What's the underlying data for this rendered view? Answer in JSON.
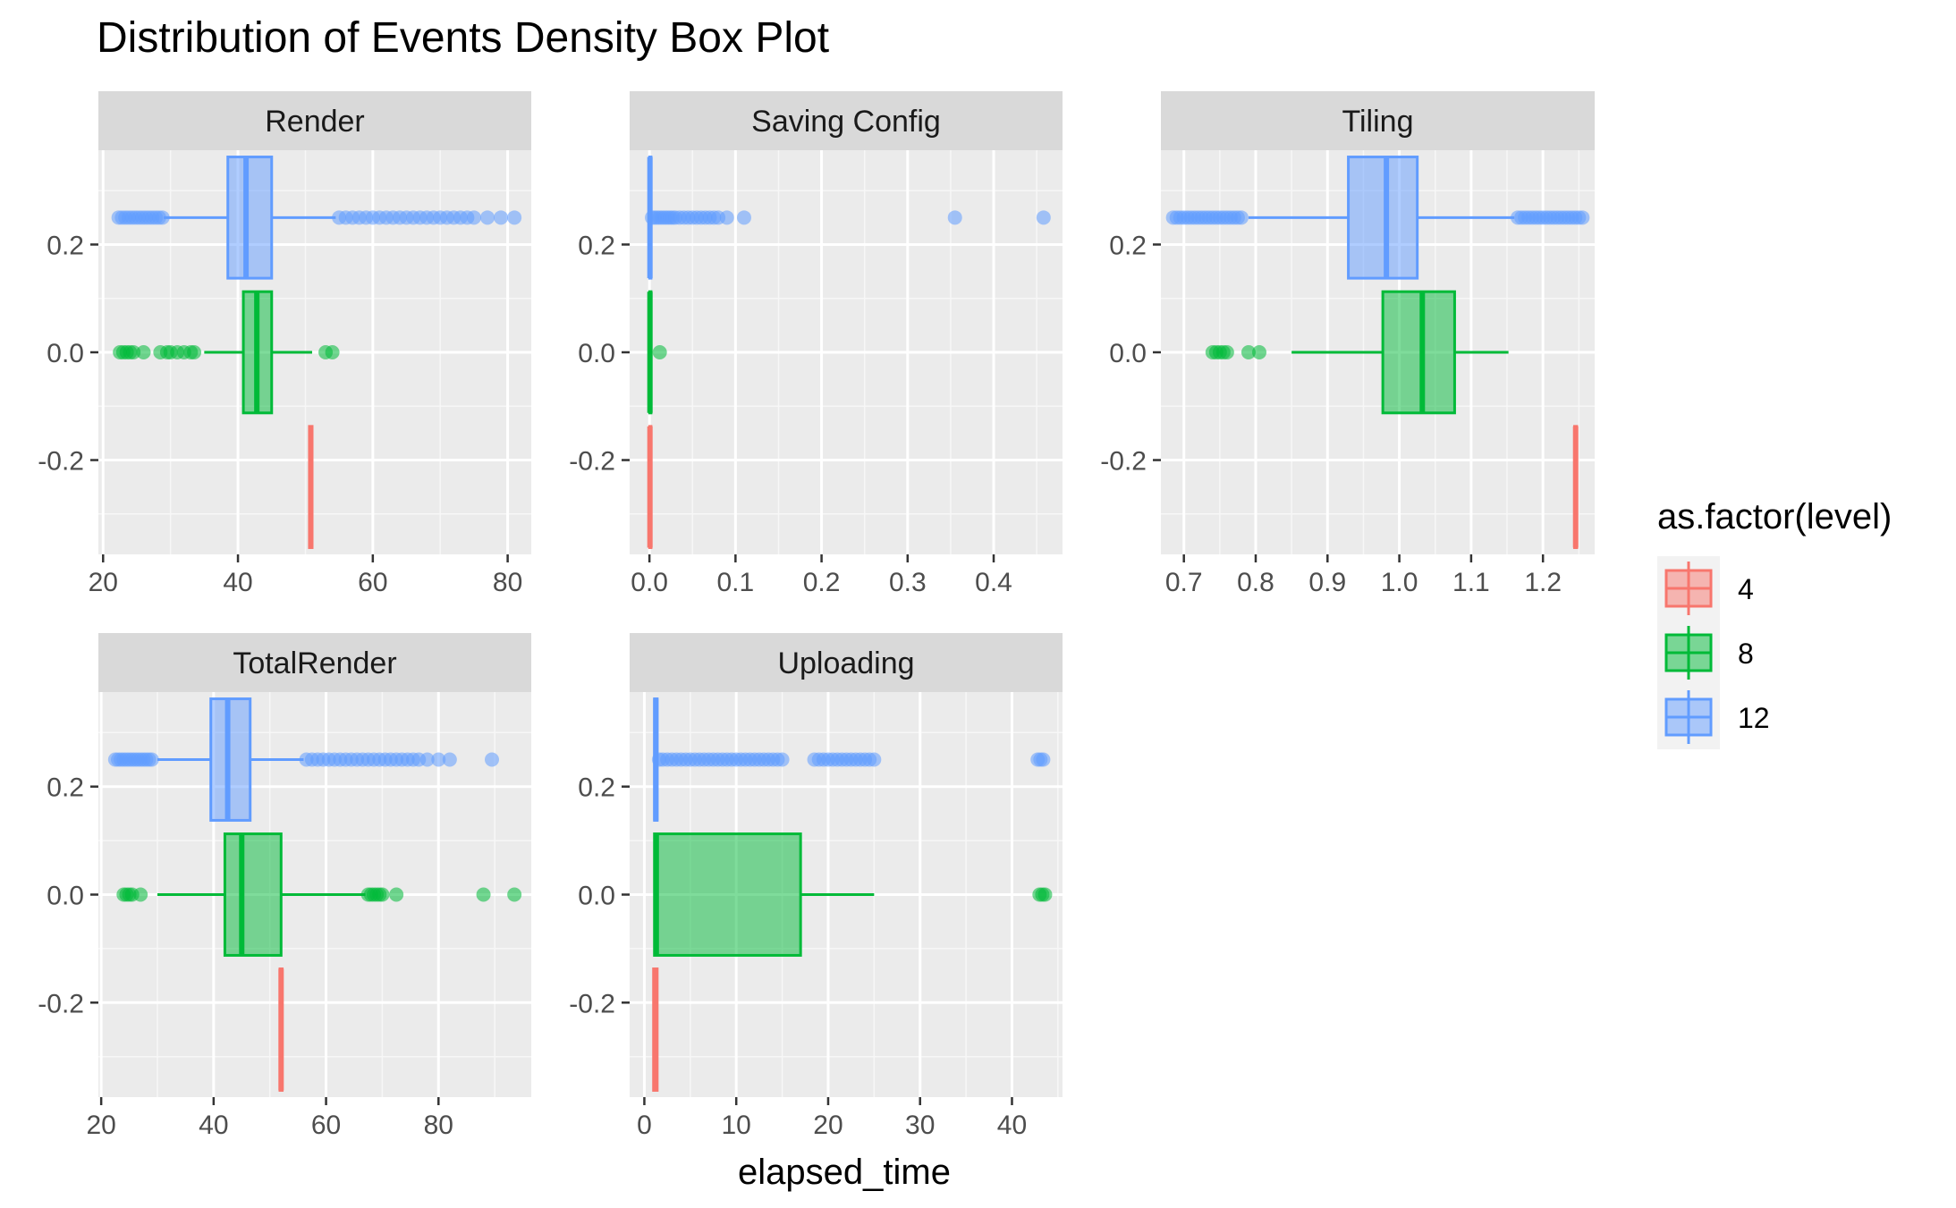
{
  "chart_data": {
    "type": "box",
    "title": "Distribution of Events Density  Box Plot",
    "xlabel": "elapsed_time",
    "ylabel": "",
    "legend": {
      "title": "as.factor(level)",
      "placement": "right",
      "entries": [
        {
          "label": "4",
          "color": "#F8766D"
        },
        {
          "label": "8",
          "color": "#00BA38"
        },
        {
          "label": "12",
          "color": "#619CFF"
        }
      ]
    },
    "grid": true,
    "y_ticks": [
      "0.2",
      "0.0",
      "-0.2"
    ],
    "y_tick_values": [
      0.2,
      0.0,
      -0.2
    ],
    "ylim": [
      -0.375,
      0.375
    ],
    "panels": [
      {
        "facet": "Render",
        "xlim": [
          19.3,
          83.5
        ],
        "x_ticks": [
          20,
          40,
          60,
          80
        ],
        "x_tick_labels": [
          "20",
          "40",
          "60",
          "80"
        ],
        "series": [
          {
            "level": "4",
            "y": -0.25,
            "q1": 50.6,
            "median": 50.8,
            "q3": 51.0,
            "whisker_low": 50.6,
            "whisker_high": 51.0,
            "outliers": []
          },
          {
            "level": "8",
            "y": 0.0,
            "q1": 40.8,
            "median": 42.8,
            "q3": 45.0,
            "whisker_low": 35.0,
            "whisker_high": 51.0,
            "outliers": [
              22.5,
              23.0,
              23.5,
              24.0,
              24.5,
              26.0,
              28.5,
              29.5,
              30.0,
              31.0,
              32.0,
              33.0,
              33.5,
              53.0,
              54.0
            ]
          },
          {
            "level": "12",
            "y": 0.25,
            "q1": 38.5,
            "median": 41.2,
            "q3": 45.0,
            "whisker_low": 29.0,
            "whisker_high": 54.5,
            "outliers": [
              22.3,
              22.8,
              23.3,
              23.8,
              24.3,
              24.8,
              25.3,
              25.8,
              26.3,
              26.8,
              27.3,
              27.8,
              28.3,
              28.8,
              55.0,
              56.0,
              57.0,
              58.0,
              59.0,
              60.0,
              61.0,
              62.0,
              63.0,
              64.0,
              65.0,
              66.0,
              67.0,
              68.0,
              69.0,
              70.0,
              71.0,
              72.0,
              73.0,
              74.0,
              75.0,
              77.0,
              79.0,
              81.0
            ]
          }
        ]
      },
      {
        "facet": "Saving Config",
        "xlim": [
          -0.023,
          0.48
        ],
        "x_ticks": [
          0.0,
          0.1,
          0.2,
          0.3,
          0.4
        ],
        "x_tick_labels": [
          "0.0",
          "0.1",
          "0.2",
          "0.3",
          "0.4"
        ],
        "series": [
          {
            "level": "4",
            "y": -0.25,
            "q1": 0.0003,
            "median": 0.0006,
            "q3": 0.001,
            "whisker_low": 0.0002,
            "whisker_high": 0.0012,
            "outliers": []
          },
          {
            "level": "8",
            "y": 0.0,
            "q1": 0.0003,
            "median": 0.0006,
            "q3": 0.001,
            "whisker_low": 0.0002,
            "whisker_high": 0.0012,
            "outliers": [
              0.012
            ]
          },
          {
            "level": "12",
            "y": 0.25,
            "q1": 0.0003,
            "median": 0.0006,
            "q3": 0.001,
            "whisker_low": 0.0002,
            "whisker_high": 0.0012,
            "outliers": [
              0.003,
              0.006,
              0.009,
              0.012,
              0.015,
              0.018,
              0.021,
              0.024,
              0.027,
              0.03,
              0.035,
              0.04,
              0.045,
              0.05,
              0.055,
              0.06,
              0.065,
              0.07,
              0.075,
              0.08,
              0.09,
              0.11,
              0.355,
              0.458
            ]
          }
        ]
      },
      {
        "facet": "Tiling",
        "xlim": [
          0.668,
          1.272
        ],
        "x_ticks": [
          0.7,
          0.8,
          0.9,
          1.0,
          1.1,
          1.2
        ],
        "x_tick_labels": [
          "0.7",
          "0.8",
          "0.9",
          "1.0",
          "1.1",
          "1.2"
        ],
        "series": [
          {
            "level": "4",
            "y": -0.25,
            "q1": 1.244,
            "median": 1.2455,
            "q3": 1.247,
            "whisker_low": 1.244,
            "whisker_high": 1.247,
            "outliers": []
          },
          {
            "level": "8",
            "y": 0.0,
            "q1": 0.977,
            "median": 1.032,
            "q3": 1.077,
            "whisker_low": 0.85,
            "whisker_high": 1.152,
            "outliers": [
              0.74,
              0.745,
              0.75,
              0.755,
              0.76,
              0.79,
              0.805
            ]
          },
          {
            "level": "12",
            "y": 0.25,
            "q1": 0.929,
            "median": 0.982,
            "q3": 1.025,
            "whisker_low": 0.79,
            "whisker_high": 1.16,
            "outliers": [
              0.685,
              0.69,
              0.695,
              0.7,
              0.705,
              0.71,
              0.715,
              0.72,
              0.725,
              0.73,
              0.735,
              0.74,
              0.745,
              0.75,
              0.755,
              0.76,
              0.765,
              0.77,
              0.775,
              0.78,
              1.165,
              1.17,
              1.175,
              1.18,
              1.185,
              1.19,
              1.195,
              1.2,
              1.205,
              1.21,
              1.215,
              1.22,
              1.225,
              1.23,
              1.235,
              1.24,
              1.245,
              1.25,
              1.255
            ]
          }
        ]
      },
      {
        "facet": "TotalRender",
        "xlim": [
          19.5,
          96.5
        ],
        "x_ticks": [
          20,
          40,
          60,
          80
        ],
        "x_tick_labels": [
          "20",
          "40",
          "60",
          "80"
        ],
        "series": [
          {
            "level": "4",
            "y": -0.25,
            "q1": 51.8,
            "median": 52.0,
            "q3": 52.2,
            "whisker_low": 51.8,
            "whisker_high": 52.2,
            "outliers": []
          },
          {
            "level": "8",
            "y": 0.0,
            "q1": 42.0,
            "median": 45.0,
            "q3": 52.0,
            "whisker_low": 30.0,
            "whisker_high": 67.0,
            "outliers": [
              24.0,
              24.5,
              25.0,
              25.5,
              27.0,
              67.5,
              68.0,
              68.5,
              69.0,
              69.5,
              70.0,
              72.5,
              88.0,
              93.5
            ]
          },
          {
            "level": "12",
            "y": 0.25,
            "q1": 39.5,
            "median": 42.5,
            "q3": 46.5,
            "whisker_low": 30.0,
            "whisker_high": 56.0,
            "outliers": [
              22.5,
              23.0,
              23.5,
              24.0,
              24.5,
              25.0,
              25.5,
              26.0,
              26.5,
              27.0,
              27.5,
              28.0,
              28.5,
              29.0,
              56.5,
              57.5,
              58.5,
              59.5,
              60.5,
              61.5,
              62.5,
              63.5,
              64.5,
              65.5,
              66.5,
              67.5,
              68.5,
              69.5,
              70.5,
              71.5,
              72.5,
              73.5,
              74.5,
              75.5,
              76.5,
              78.0,
              80.0,
              82.0,
              89.5
            ]
          }
        ]
      },
      {
        "facet": "Uploading",
        "xlim": [
          -1.6,
          45.5
        ],
        "x_ticks": [
          0,
          10,
          20,
          30,
          40
        ],
        "x_tick_labels": [
          "0",
          "10",
          "20",
          "30",
          "40"
        ],
        "series": [
          {
            "level": "4",
            "y": -0.25,
            "q1": 1.0,
            "median": 1.2,
            "q3": 1.4,
            "whisker_low": 1.0,
            "whisker_high": 1.4,
            "outliers": []
          },
          {
            "level": "8",
            "y": 0.0,
            "q1": 1.1,
            "median": 1.3,
            "q3": 17.0,
            "whisker_low": 1.0,
            "whisker_high": 25.0,
            "outliers": [
              43.0,
              43.3,
              43.6
            ]
          },
          {
            "level": "12",
            "y": 0.25,
            "q1": 1.1,
            "median": 1.25,
            "q3": 1.4,
            "whisker_low": 1.0,
            "whisker_high": 1.5,
            "outliers": [
              1.6,
              2.0,
              2.5,
              3.0,
              3.5,
              4.0,
              4.5,
              5.0,
              5.5,
              6.0,
              6.5,
              7.0,
              7.5,
              8.0,
              8.5,
              9.0,
              9.5,
              10.0,
              10.5,
              11.0,
              11.5,
              12.0,
              12.5,
              13.0,
              13.5,
              14.0,
              14.5,
              15.0,
              18.5,
              19.0,
              19.5,
              20.0,
              20.5,
              21.0,
              21.5,
              22.0,
              22.5,
              23.0,
              23.5,
              24.0,
              24.5,
              25.0,
              42.8,
              43.1,
              43.4
            ]
          }
        ]
      }
    ]
  }
}
